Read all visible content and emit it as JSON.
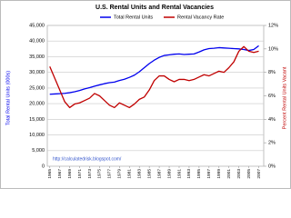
{
  "chart_data": {
    "type": "line",
    "title": "U.S. Rental Units and Rental Vacancies",
    "ylabel": "Total Rental Units (000s)",
    "y2label": "Percent Rental Units Vacant",
    "watermark": "http://calculatedrisk.blogspot.com/",
    "x": [
      1965,
      1966,
      1967,
      1968,
      1969,
      1970,
      1971,
      1972,
      1973,
      1974,
      1975,
      1976,
      1977,
      1978,
      1979,
      1980,
      1981,
      1982,
      1983,
      1984,
      1985,
      1986,
      1987,
      1988,
      1989,
      1990,
      1991,
      1992,
      1993,
      1994,
      1995,
      1996,
      1997,
      1998,
      1999,
      2000,
      2001,
      2002,
      2003,
      2004,
      2005,
      2006,
      2007
    ],
    "series": [
      {
        "name": "Total Rental Units",
        "color": "#0000ee",
        "values": [
          23000,
          23100,
          23200,
          23300,
          23500,
          23800,
          24200,
          24700,
          25100,
          25600,
          26000,
          26400,
          26700,
          26900,
          27400,
          27800,
          28400,
          29100,
          30200,
          31500,
          32800,
          33900,
          34800,
          35400,
          35600,
          35800,
          35900,
          35700,
          35800,
          35900,
          36500,
          37200,
          37600,
          37700,
          37900,
          37800,
          37700,
          37600,
          37500,
          37300,
          37000,
          37300,
          38500
        ]
      },
      {
        "name": "Rental Vacancy Rate",
        "color": "#c00000",
        "axis": "y2",
        "values": [
          8.5,
          7.5,
          6.5,
          5.5,
          5.0,
          5.3,
          5.4,
          5.6,
          5.8,
          6.2,
          6.0,
          5.6,
          5.2,
          5.0,
          5.4,
          5.2,
          5.0,
          5.3,
          5.7,
          5.9,
          6.5,
          7.3,
          7.7,
          7.7,
          7.4,
          7.2,
          7.4,
          7.4,
          7.3,
          7.4,
          7.6,
          7.8,
          7.7,
          7.9,
          8.1,
          8.0,
          8.4,
          8.9,
          9.8,
          10.2,
          9.8,
          9.7,
          9.8
        ]
      }
    ],
    "xlim": [
      1964.5,
      2008
    ],
    "xticks": [
      1965,
      1967,
      1969,
      1971,
      1973,
      1975,
      1977,
      1979,
      1981,
      1983,
      1985,
      1987,
      1989,
      1991,
      1993,
      1995,
      1997,
      1999,
      2001,
      2003,
      2005,
      2007
    ],
    "ylim": [
      0,
      45000
    ],
    "yticks": [
      0,
      {
        "value": 5000,
        "label": "5,000"
      },
      {
        "value": 10000,
        "label": "10,000"
      },
      {
        "value": 15000,
        "label": "15,000"
      },
      {
        "value": 20000,
        "label": "20,000"
      },
      {
        "value": 25000,
        "label": "25,000"
      },
      {
        "value": 30000,
        "label": "30,000"
      },
      {
        "value": 35000,
        "label": "35,000"
      },
      {
        "value": 40000,
        "label": "40,000"
      },
      {
        "value": 45000,
        "label": "45,000"
      }
    ],
    "y2lim": [
      0,
      12
    ],
    "y2ticks": [
      {
        "value": 0,
        "label": "0%"
      },
      {
        "value": 2,
        "label": "2%"
      },
      {
        "value": 4,
        "label": "4%"
      },
      {
        "value": 6,
        "label": "6%"
      },
      {
        "value": 8,
        "label": "8%"
      },
      {
        "value": 10,
        "label": "10%"
      },
      {
        "value": 12,
        "label": "12%"
      }
    ],
    "grid": true
  }
}
